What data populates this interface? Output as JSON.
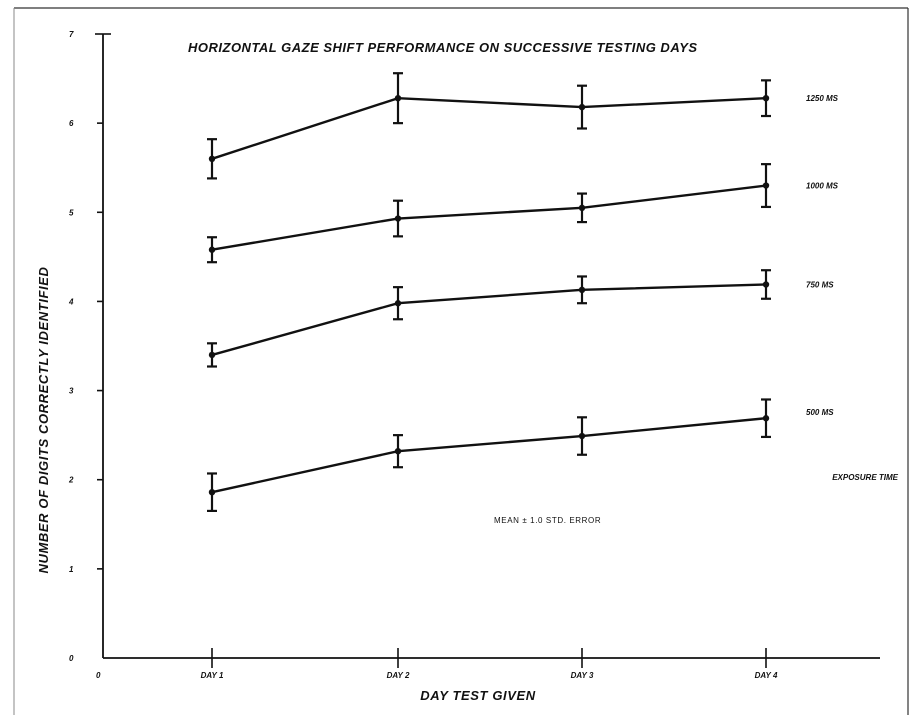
{
  "chart_data": {
    "type": "line",
    "title": "HORIZONTAL GAZE SHIFT PERFORMANCE ON SUCCESSIVE TESTING DAYS",
    "xlabel": "DAY TEST GIVEN",
    "ylabel": "NUMBER OF DIGITS CORRECTLY IDENTIFIED",
    "categories": [
      "DAY 1",
      "DAY 2",
      "DAY 3",
      "DAY 4"
    ],
    "x_origin_label": "0",
    "y_ticks": [
      "0",
      "1",
      "2",
      "3",
      "4",
      "5",
      "6",
      "7"
    ],
    "ylim": [
      0,
      7
    ],
    "grid": false,
    "legend_title": "EXPOSURE TIME",
    "annotation": "MEAN ± 1.0 STD. ERROR",
    "series": [
      {
        "name": "1250 MS",
        "values": [
          5.6,
          6.28,
          6.18,
          6.28
        ],
        "errors": [
          0.22,
          0.28,
          0.24,
          0.2
        ]
      },
      {
        "name": "1000 MS",
        "values": [
          4.58,
          4.93,
          5.05,
          5.3
        ],
        "errors": [
          0.14,
          0.2,
          0.16,
          0.24
        ]
      },
      {
        "name": "750 MS",
        "values": [
          3.4,
          3.98,
          4.13,
          4.19
        ],
        "errors": [
          0.13,
          0.18,
          0.15,
          0.16
        ]
      },
      {
        "name": "500 MS",
        "values": [
          1.86,
          2.32,
          2.49,
          2.69
        ],
        "errors": [
          0.21,
          0.18,
          0.21,
          0.21
        ]
      }
    ]
  }
}
